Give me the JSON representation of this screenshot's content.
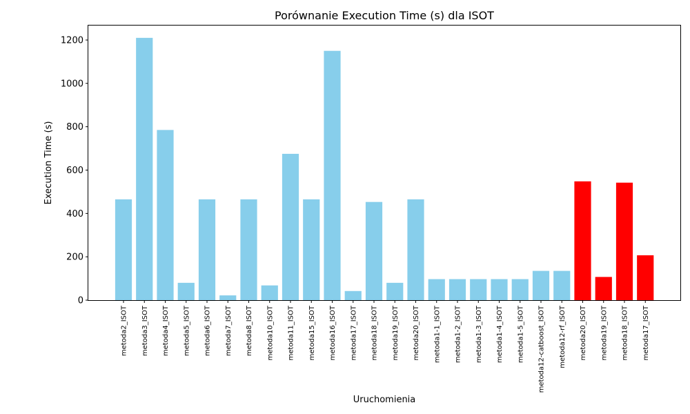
{
  "chart_data": {
    "type": "bar",
    "title": "Porównanie Execution Time (s) dla ISOT",
    "xlabel": "Uruchomienia",
    "ylabel": "Execution Time (s)",
    "ylim": [
      0,
      1270
    ],
    "yticks": [
      0,
      200,
      400,
      600,
      800,
      1000,
      1200
    ],
    "grid": false,
    "categories": [
      "metoda2_ISOT",
      "metoda3_ISOT",
      "metoda4_ISOT",
      "metoda5_ISOT",
      "metoda6_ISOT",
      "metoda7_ISOT",
      "metoda8_ISOT",
      "metoda10_ISOT",
      "metoda11_ISOT",
      "metoda15_ISOT",
      "metoda16_ISOT",
      "metoda17_ISOT",
      "metoda18_ISOT",
      "metoda19_ISOT",
      "metoda20_ISOT",
      "metoda1-1_ISOT",
      "metoda1-2_ISOT",
      "metoda1-3_ISOT",
      "metoda1-4_ISOT",
      "metoda1-5_ISOT",
      "metoda12-catboost_ISOT",
      "metoda12-rf_ISOT",
      "metoda20_ISOT",
      "metoda19_ISOT",
      "metoda18_ISOT",
      "metoda17_ISOT"
    ],
    "values": [
      465,
      1210,
      785,
      80,
      465,
      22,
      465,
      68,
      675,
      465,
      1150,
      42,
      453,
      80,
      465,
      97,
      97,
      97,
      97,
      97,
      135,
      135,
      548,
      107,
      542,
      207
    ],
    "bar_colors": [
      "#87ceeb",
      "#87ceeb",
      "#87ceeb",
      "#87ceeb",
      "#87ceeb",
      "#87ceeb",
      "#87ceeb",
      "#87ceeb",
      "#87ceeb",
      "#87ceeb",
      "#87ceeb",
      "#87ceeb",
      "#87ceeb",
      "#87ceeb",
      "#87ceeb",
      "#87ceeb",
      "#87ceeb",
      "#87ceeb",
      "#87ceeb",
      "#87ceeb",
      "#87ceeb",
      "#87ceeb",
      "#ff0000",
      "#ff0000",
      "#ff0000",
      "#ff0000"
    ]
  }
}
